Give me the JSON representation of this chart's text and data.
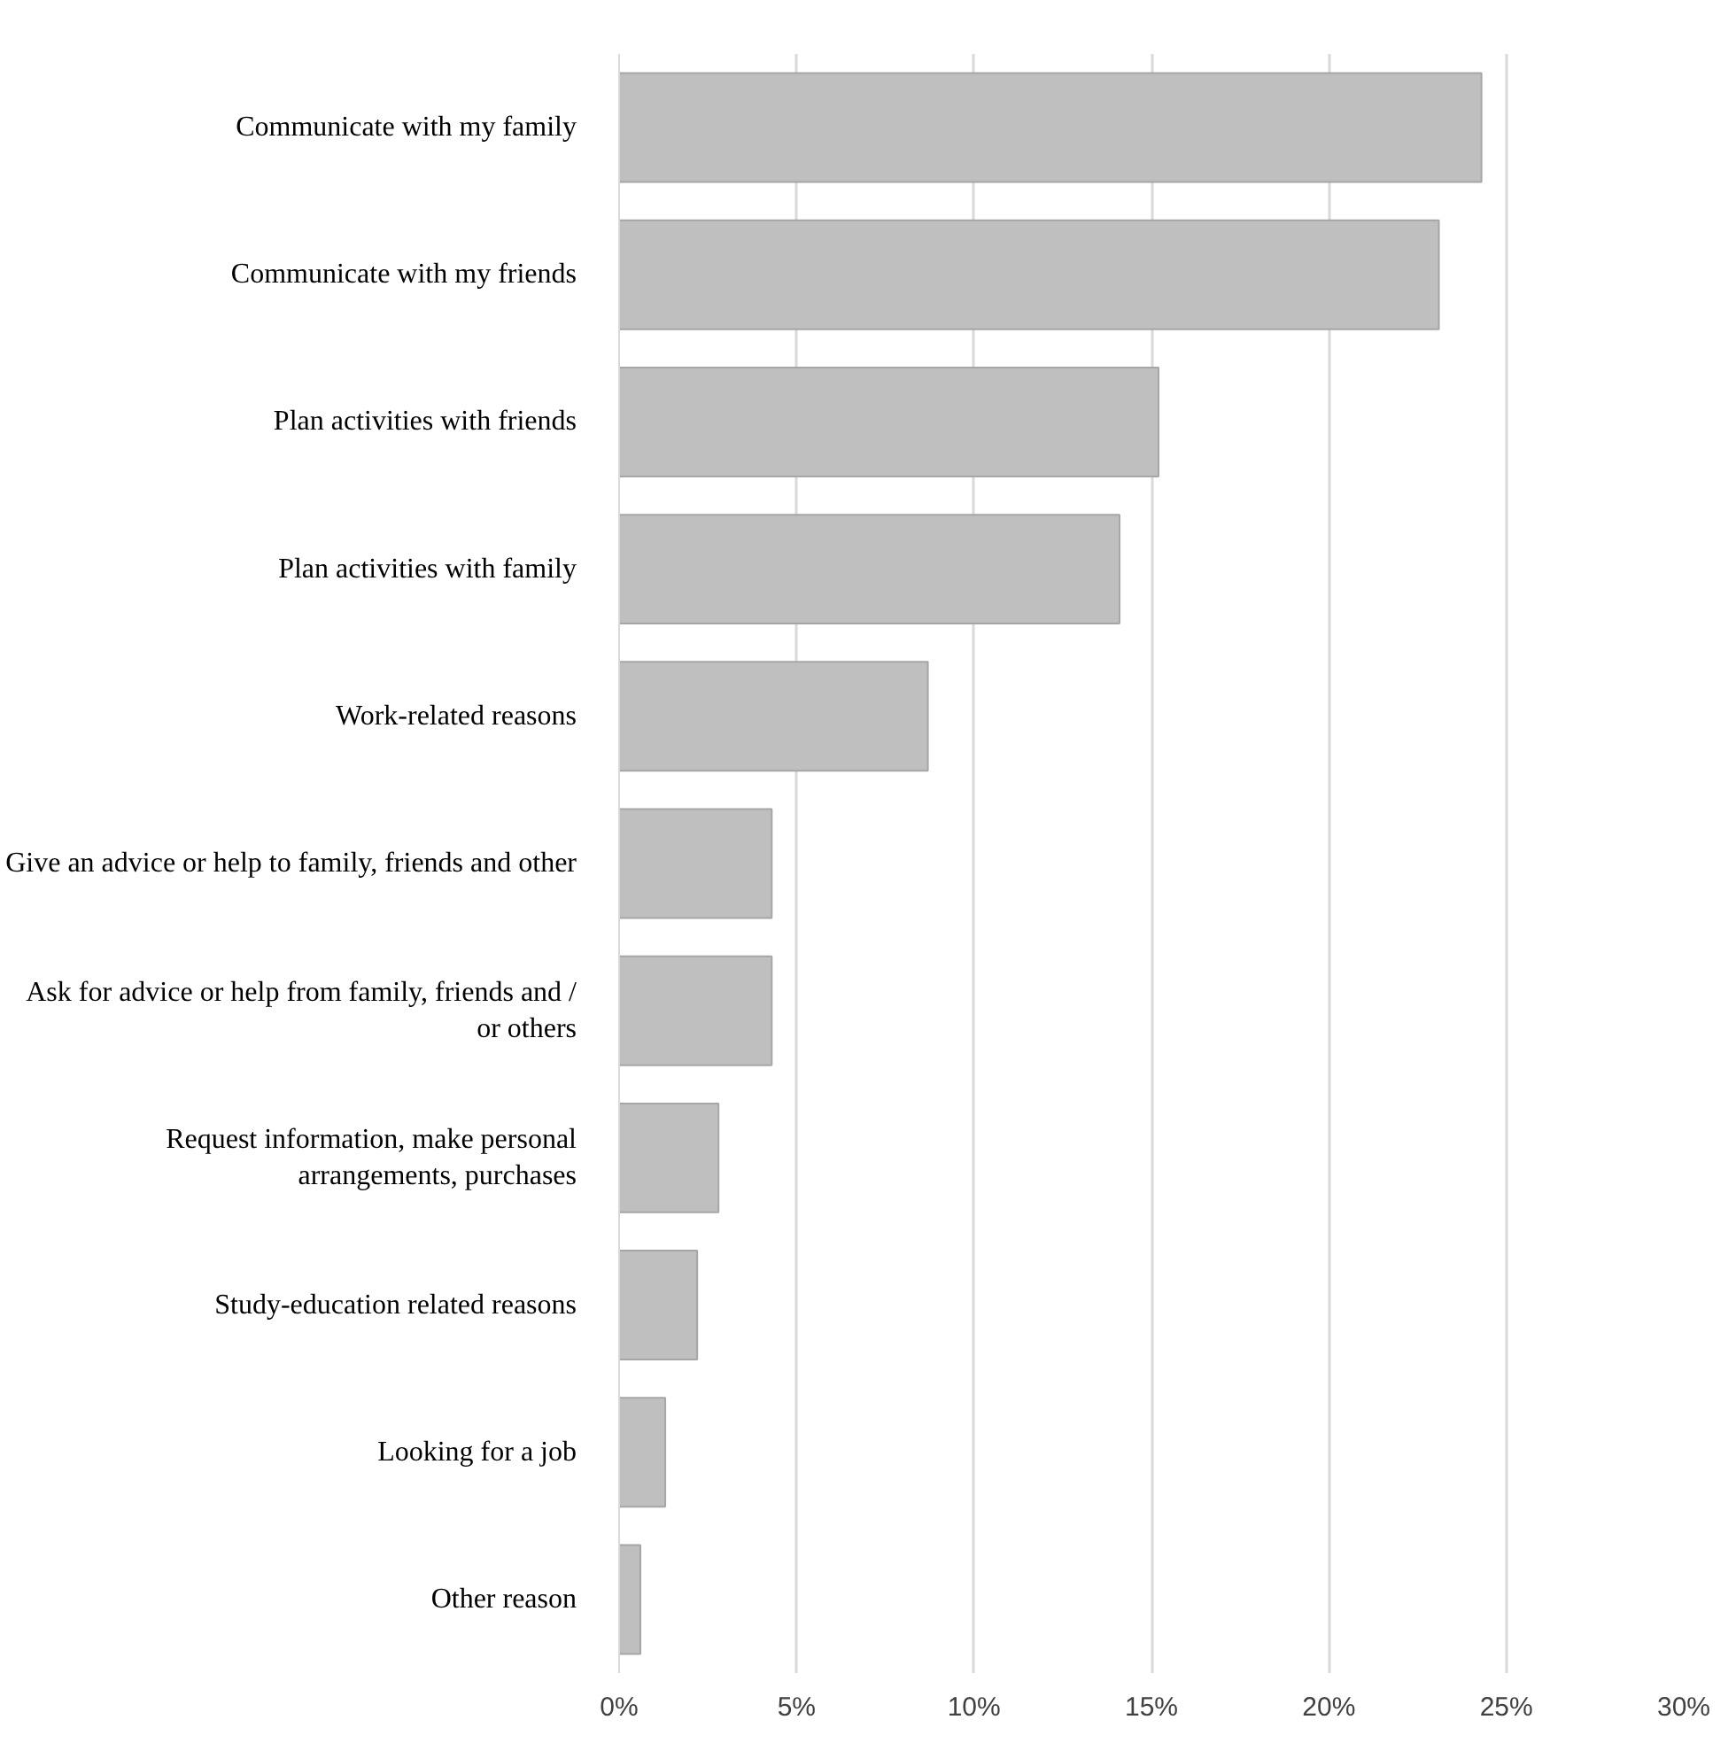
{
  "chart_data": {
    "type": "bar",
    "orientation": "horizontal",
    "categories": [
      "Communicate with my family",
      "Communicate with my friends",
      "Plan activities with friends",
      "Plan activities with family",
      "Work-related reasons",
      "Give an advice or help to family, friends and other",
      "Ask for advice or help from family, friends and /\nor others",
      "Request information, make personal\narrangements, purchases",
      "Study-education related reasons",
      "Looking for a job",
      "Other reason"
    ],
    "values": [
      24.3,
      23.1,
      15.2,
      14.1,
      8.7,
      4.3,
      4.3,
      2.8,
      2.2,
      1.3,
      0.6
    ],
    "color": "#bfbfbf",
    "xlim": [
      0,
      30
    ],
    "xticks": [
      {
        "value": 0,
        "label": "0%"
      },
      {
        "value": 5,
        "label": "5%"
      },
      {
        "value": 10,
        "label": "10%"
      },
      {
        "value": 15,
        "label": "15%"
      },
      {
        "value": 20,
        "label": "20%"
      },
      {
        "value": 25,
        "label": "25%"
      },
      {
        "value": 30,
        "label": "30%"
      }
    ],
    "grid": "x"
  }
}
